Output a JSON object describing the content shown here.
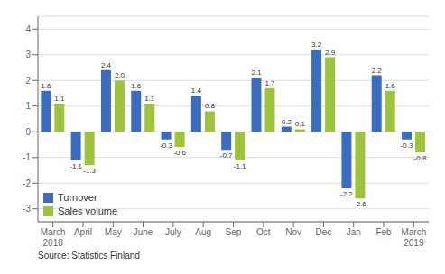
{
  "chart_data": {
    "type": "bar",
    "categories": [
      "March\n2018",
      "April",
      "May",
      "June",
      "July",
      "Aug",
      "Sep",
      "Oct",
      "Nov",
      "Dec",
      "Jan",
      "Feb",
      "March\n2019"
    ],
    "series": [
      {
        "name": "Turnover",
        "color": "#3a6dbf",
        "values": [
          1.6,
          -1.1,
          2.4,
          1.6,
          -0.3,
          1.4,
          -0.7,
          2.1,
          0.2,
          3.2,
          -2.2,
          2.2,
          -0.3
        ]
      },
      {
        "name": "Sales volume",
        "color": "#9dc43b",
        "values": [
          1.1,
          -1.3,
          2.0,
          1.1,
          -0.6,
          0.8,
          -1.1,
          1.7,
          0.1,
          2.9,
          -2.6,
          1.6,
          -0.8
        ],
        "value_labels": [
          "1.1",
          "-1.3",
          "2.0",
          "1.1",
          "-0.6",
          "0.8",
          "-1.1",
          "1.7",
          "0.1",
          "2.9",
          "-2.6",
          "1.6",
          "-0.8"
        ]
      }
    ],
    "ylim": [
      -3.5,
      4.5
    ],
    "yticks": [
      -3,
      -2,
      -1,
      0,
      1,
      2,
      3,
      4
    ],
    "grid": true,
    "legend": "lower left",
    "data_labels": true,
    "source": "Source: Statistics Finland"
  }
}
